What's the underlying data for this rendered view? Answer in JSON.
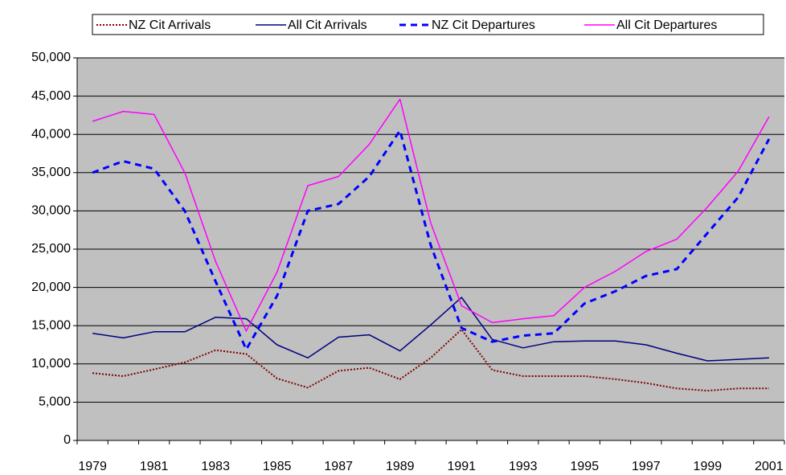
{
  "chart_data": {
    "type": "line",
    "categories": [
      "1979",
      null,
      "1981",
      null,
      "1983",
      null,
      "1985",
      null,
      "1987",
      null,
      "1989",
      null,
      "1991",
      null,
      "1993",
      null,
      "1995",
      null,
      "1997",
      null,
      "1999",
      null,
      "2001"
    ],
    "series": [
      {
        "name": "NZ Cit Arrivals",
        "color": "#800000",
        "line_style": "dotted",
        "values": [
          8800,
          8400,
          9300,
          10200,
          11800,
          11300,
          8100,
          6900,
          9100,
          9500,
          8000,
          10800,
          14500,
          9200,
          8400,
          8400,
          8400,
          8000,
          7500,
          6800,
          6500,
          6800,
          6800
        ]
      },
      {
        "name": "All Cit Arrivals",
        "color": "#000080",
        "line_style": "solid",
        "values": [
          14000,
          13400,
          14200,
          14200,
          16100,
          15900,
          12500,
          10800,
          13500,
          13800,
          11700,
          15100,
          18700,
          13200,
          12100,
          12900,
          13000,
          13000,
          12500,
          11400,
          10400,
          10600,
          10800
        ]
      },
      {
        "name": "NZ Cit Departures",
        "color": "#0000ff",
        "line_style": "dashed",
        "values": [
          35000,
          36500,
          35500,
          30000,
          20800,
          11900,
          18900,
          30000,
          30900,
          34500,
          40500,
          25500,
          14700,
          12900,
          13700,
          14000,
          17900,
          19500,
          21500,
          22400,
          27100,
          31800,
          39400
        ]
      },
      {
        "name": "All Cit Departures",
        "color": "#ff00ff",
        "line_style": "solid",
        "values": [
          41700,
          43000,
          42600,
          35000,
          23400,
          14300,
          22000,
          33300,
          34500,
          38700,
          44600,
          28400,
          17600,
          15400,
          15900,
          16300,
          20000,
          22100,
          24700,
          26300,
          30500,
          35200,
          42300
        ]
      }
    ],
    "ylim": [
      0,
      50000
    ],
    "yticks": [
      0,
      {
        "value": 5000,
        "label": "5,000"
      },
      {
        "value": 10000,
        "label": "10,000"
      },
      {
        "value": 15000,
        "label": "15,000"
      },
      {
        "value": 20000,
        "label": "20,000"
      },
      {
        "value": 25000,
        "label": "25,000"
      },
      {
        "value": 30000,
        "label": "30,000"
      },
      {
        "value": 35000,
        "label": "35,000"
      },
      {
        "value": 40000,
        "label": "40,000"
      },
      {
        "value": 45000,
        "label": "45,000"
      },
      {
        "value": 50000,
        "label": "50,000"
      }
    ],
    "grid": true,
    "plot_background": "#c0c0c0",
    "legend": "top"
  }
}
